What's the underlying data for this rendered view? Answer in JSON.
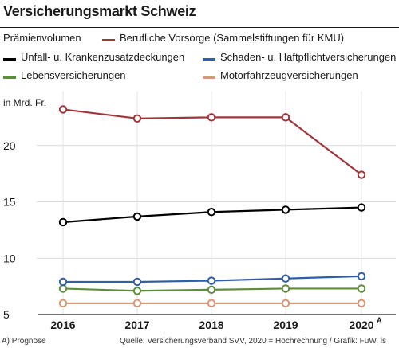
{
  "header": {
    "title": "Versicherungsmarkt Schweiz"
  },
  "legend": {
    "heading": "Prämienvolumen"
  },
  "footer": {
    "note": "A) Prognose",
    "source": "Quelle: Versicherungsverband SVV, 2020 = Hochrechnung / Grafik: FuW, ls"
  },
  "chart_data": {
    "type": "line",
    "title": "Versicherungsmarkt Schweiz",
    "ylabel": "in Mrd. Fr.",
    "xlabel": "",
    "categories": [
      "2016",
      "2017",
      "2018",
      "2019",
      "2020"
    ],
    "category_superscript": [
      "",
      "",
      "",
      "",
      "A"
    ],
    "ylim": [
      5,
      25
    ],
    "yticks": [
      5,
      10,
      15,
      20
    ],
    "grid": true,
    "series": [
      {
        "name": "Berufliche Vorsorge (Sammelstiftungen für KMU)",
        "color": "#a2353a",
        "values": [
          23.2,
          22.4,
          22.5,
          22.5,
          17.4
        ]
      },
      {
        "name": "Unfall- u. Krankenzusatzdeckungen",
        "color": "#000000",
        "values": [
          13.2,
          13.7,
          14.1,
          14.3,
          14.5
        ]
      },
      {
        "name": "Schaden- u. Haftpflichtversicherungen",
        "color": "#2f5fa8",
        "values": [
          7.9,
          7.9,
          8.0,
          8.2,
          8.4
        ]
      },
      {
        "name": "Lebensversicherungen",
        "color": "#5d8f3a",
        "values": [
          7.3,
          7.1,
          7.2,
          7.3,
          7.3
        ]
      },
      {
        "name": "Motorfahrzeugversicherungen",
        "color": "#d49a7a",
        "values": [
          6.0,
          6.0,
          6.0,
          6.0,
          6.0
        ]
      }
    ]
  }
}
